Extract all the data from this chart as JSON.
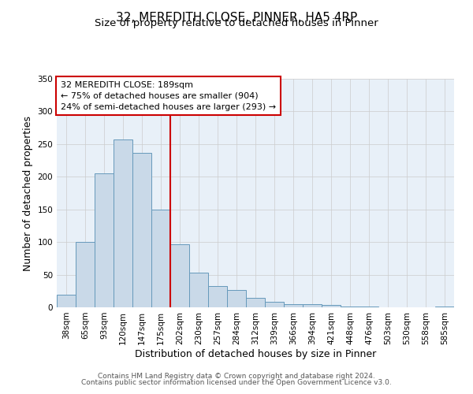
{
  "title": "32, MEREDITH CLOSE, PINNER, HA5 4RP",
  "subtitle": "Size of property relative to detached houses in Pinner",
  "xlabel": "Distribution of detached houses by size in Pinner",
  "ylabel": "Number of detached properties",
  "bar_labels": [
    "38sqm",
    "65sqm",
    "93sqm",
    "120sqm",
    "147sqm",
    "175sqm",
    "202sqm",
    "230sqm",
    "257sqm",
    "284sqm",
    "312sqm",
    "339sqm",
    "366sqm",
    "394sqm",
    "421sqm",
    "448sqm",
    "476sqm",
    "503sqm",
    "530sqm",
    "558sqm",
    "585sqm"
  ],
  "bar_values": [
    19,
    100,
    205,
    257,
    236,
    150,
    96,
    53,
    33,
    27,
    15,
    8,
    5,
    5,
    4,
    1,
    1,
    0,
    0,
    0,
    1
  ],
  "bar_color": "#c9d9e8",
  "bar_edge_color": "#6699bb",
  "ylim": [
    0,
    350
  ],
  "yticks": [
    0,
    50,
    100,
    150,
    200,
    250,
    300,
    350
  ],
  "vline_x": 5.5,
  "vline_color": "#cc0000",
  "annotation_text": "32 MEREDITH CLOSE: 189sqm\n← 75% of detached houses are smaller (904)\n24% of semi-detached houses are larger (293) →",
  "annotation_box_color": "#cc0000",
  "footer_line1": "Contains HM Land Registry data © Crown copyright and database right 2024.",
  "footer_line2": "Contains public sector information licensed under the Open Government Licence v3.0.",
  "bg_color": "#ffffff",
  "plot_bg_color": "#e8f0f8",
  "grid_color": "#cccccc",
  "title_fontsize": 11,
  "subtitle_fontsize": 9.5,
  "axis_label_fontsize": 9,
  "tick_fontsize": 7.5,
  "footer_fontsize": 6.5,
  "annot_fontsize": 8
}
